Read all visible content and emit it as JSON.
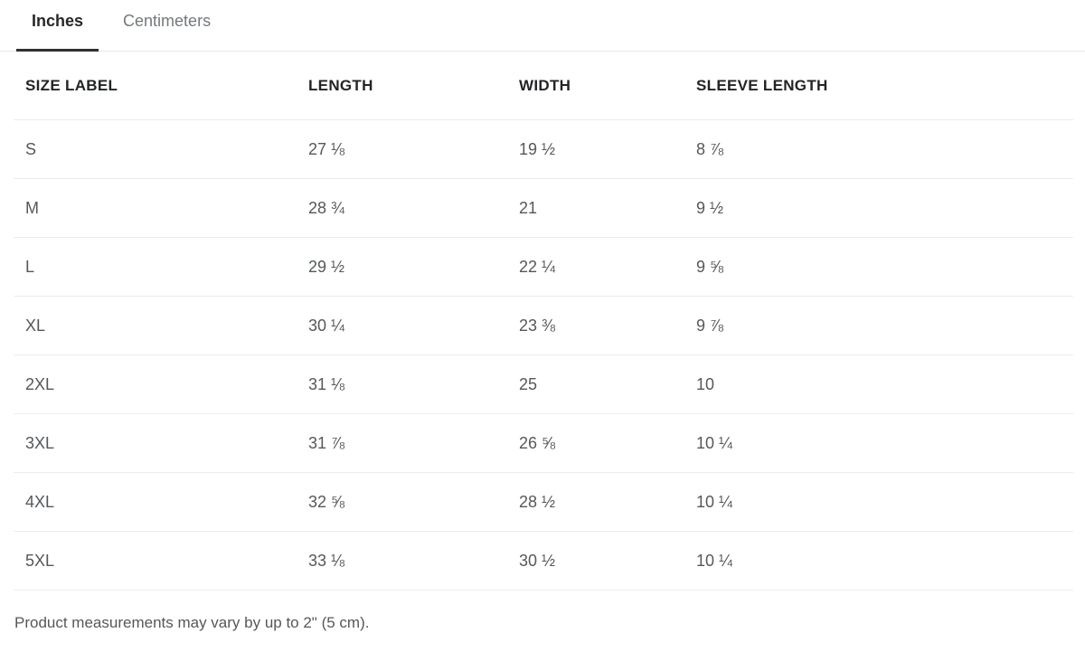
{
  "tabs": {
    "inches": "Inches",
    "centimeters": "Centimeters"
  },
  "table": {
    "headers": [
      "SIZE LABEL",
      "LENGTH",
      "WIDTH",
      "SLEEVE LENGTH"
    ],
    "rows": [
      [
        "S",
        "27 ⅛",
        "19 ½",
        "8 ⅞"
      ],
      [
        "M",
        "28 ¾",
        "21",
        "9 ½"
      ],
      [
        "L",
        "29 ½",
        "22 ¼",
        "9 ⅝"
      ],
      [
        "XL",
        "30 ¼",
        "23 ⅜",
        "9 ⅞"
      ],
      [
        "2XL",
        "31 ⅛",
        "25",
        "10"
      ],
      [
        "3XL",
        "31 ⅞",
        "26 ⅝",
        "10 ¼"
      ],
      [
        "4XL",
        "32 ⅝",
        "28 ½",
        "10 ¼"
      ],
      [
        "5XL",
        "33 ⅛",
        "30 ½",
        "10 ¼"
      ]
    ]
  },
  "footnote": "Product measurements may vary by up to 2\" (5 cm).",
  "colors": {
    "text_dark": "#26282a",
    "text_gray": "#54585b",
    "tab_inactive": "#75797c",
    "border_light": "#ececec",
    "active_underline": "#2e3032"
  }
}
